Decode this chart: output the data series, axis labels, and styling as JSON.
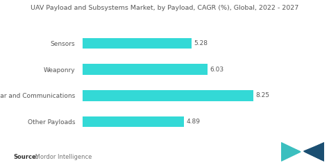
{
  "title": "UAV Payload and Subsystems Market, by Payload, CAGR (%), Global, 2022 - 2027",
  "categories": [
    "Other Payloads",
    "Radar and Communications",
    "Weaponry",
    "Sensors"
  ],
  "values": [
    4.89,
    8.25,
    6.03,
    5.28
  ],
  "bar_color": "#33D9D6",
  "background_color": "#ffffff",
  "title_fontsize": 6.8,
  "label_fontsize": 6.5,
  "value_fontsize": 6.5,
  "source_bold": "Source:",
  "source_text": " Mordor Intelligence",
  "xlim": [
    0,
    10.0
  ],
  "bar_height": 0.42,
  "title_color": "#555555",
  "label_color": "#555555",
  "value_color": "#555555",
  "source_fontsize": 6.0,
  "logo_teal": "#3BBFBF",
  "logo_navy": "#1B4F72"
}
